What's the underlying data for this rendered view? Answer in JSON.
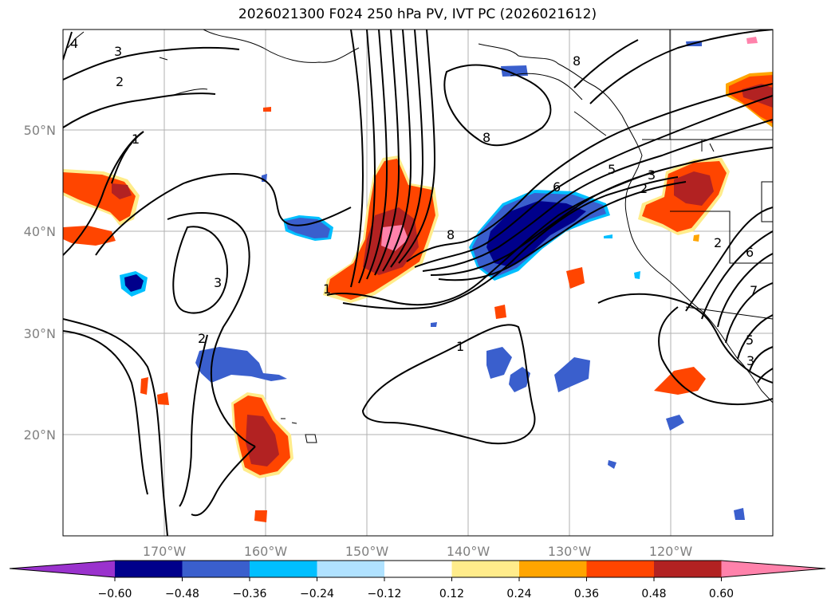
{
  "title": "2026021300 F024 250 hPa PV, IVT PC (2026021612)",
  "axes": {
    "lat_labels": [
      "50°N",
      "40°N",
      "30°N",
      "20°N"
    ],
    "lon_labels": [
      "170°W",
      "160°W",
      "150°W",
      "140°W",
      "130°W",
      "120°W"
    ]
  },
  "colorbar": {
    "ticks": [
      "−0.60",
      "−0.48",
      "−0.36",
      "−0.24",
      "−0.12",
      "0.12",
      "0.24",
      "0.36",
      "0.48",
      "0.60"
    ],
    "colors": [
      "#9a32cd",
      "#00008b",
      "#3a5fcd",
      "#00bfff",
      "#b0e2ff",
      "#ffffff",
      "#ffec8b",
      "#ffa500",
      "#ff4500",
      "#b22222",
      "#ff82ab"
    ]
  },
  "contour_labels": [
    "4",
    "3",
    "2",
    "1",
    "3",
    "2",
    "1",
    "8",
    "8",
    "5",
    "3",
    "2",
    "6",
    "8",
    "1",
    "2",
    "6",
    "7",
    "5",
    "3"
  ]
}
